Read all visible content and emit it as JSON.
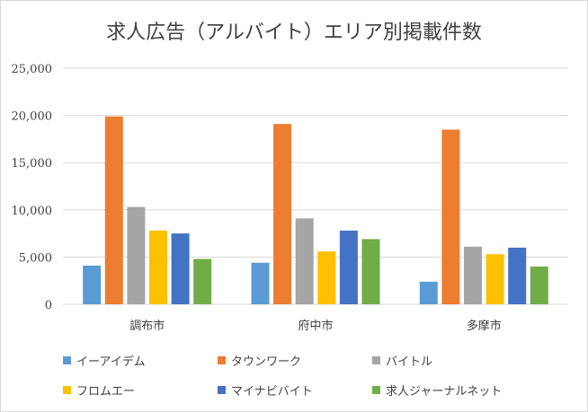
{
  "chart_data": {
    "type": "bar",
    "title": "求人広告（アルバイト）エリア別掲載件数",
    "xlabel": "",
    "ylabel": "",
    "categories": [
      "調布市",
      "府中市",
      "多摩市"
    ],
    "ylim": [
      0,
      25000
    ],
    "yticks": [
      0,
      5000,
      10000,
      15000,
      20000,
      25000
    ],
    "ytick_labels": [
      "0",
      "5,000",
      "10,000",
      "15,000",
      "20,000",
      "25,000"
    ],
    "grid": true,
    "legend_position": "bottom",
    "series": [
      {
        "name": "イーアイデム",
        "color": "#5b9bd5",
        "values": [
          4100,
          4400,
          2400
        ]
      },
      {
        "name": "タウンワーク",
        "color": "#ed7d31",
        "values": [
          19900,
          19100,
          18500
        ]
      },
      {
        "name": "バイトル",
        "color": "#a5a5a5",
        "values": [
          10300,
          9100,
          6100
        ]
      },
      {
        "name": "フロムエー",
        "color": "#ffc000",
        "values": [
          7800,
          5600,
          5300
        ]
      },
      {
        "name": "マイナビバイト",
        "color": "#4472c4",
        "values": [
          7500,
          7800,
          6000
        ]
      },
      {
        "name": "求人ジャーナルネット",
        "color": "#70ad47",
        "values": [
          4800,
          6900,
          4000
        ]
      }
    ]
  }
}
